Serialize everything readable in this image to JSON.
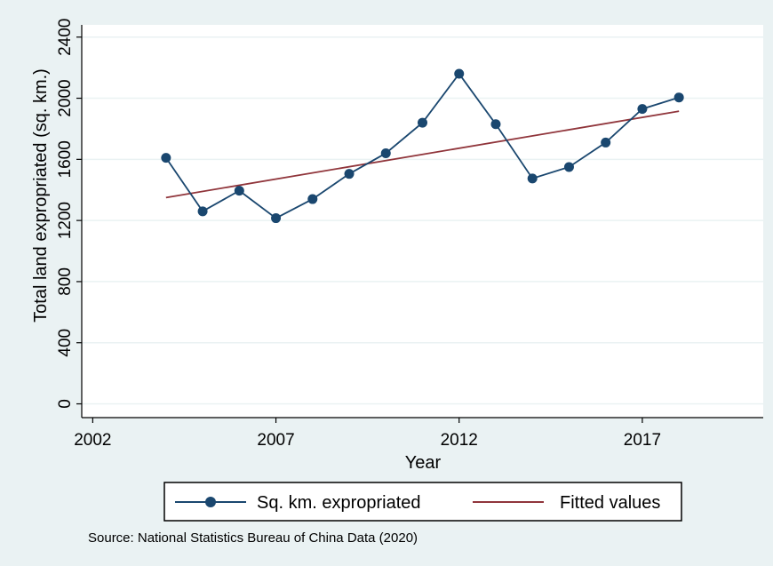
{
  "chart_data": {
    "type": "line",
    "xlabel": "Year",
    "ylabel": "Total land expropriated (sq. km.)",
    "xlim": [
      2001.7,
      2020.3
    ],
    "ylim": [
      -90,
      2480
    ],
    "xticks": [
      2002,
      2007,
      2012,
      2017
    ],
    "xtick_labels": [
      "2002",
      "2007",
      "2012",
      "2017"
    ],
    "yticks": [
      0,
      400,
      800,
      1200,
      1600,
      2000,
      2400
    ],
    "ytick_labels": [
      "0",
      "400",
      "800",
      "1200",
      "1600",
      "2000",
      "2400"
    ],
    "grid": true,
    "legend_position": "bottom",
    "series": [
      {
        "name": "Sq. km. expropriated",
        "style": "line-with-markers",
        "color": "#1a476f",
        "x": [
          2004,
          2005,
          2006,
          2007,
          2008,
          2009,
          2010,
          2011,
          2012,
          2013,
          2014,
          2015,
          2016,
          2017,
          2018
        ],
        "values": [
          1610,
          1260,
          1395,
          1215,
          1340,
          1505,
          1640,
          1840,
          2160,
          1830,
          1475,
          1550,
          1710,
          1930,
          2005
        ]
      },
      {
        "name": "Fitted values",
        "style": "line",
        "color": "#90353b",
        "x": [
          2004,
          2018
        ],
        "values": [
          1350,
          1915
        ]
      }
    ],
    "source_note": "Source: National Statistics Bureau of China Data (2020)"
  }
}
